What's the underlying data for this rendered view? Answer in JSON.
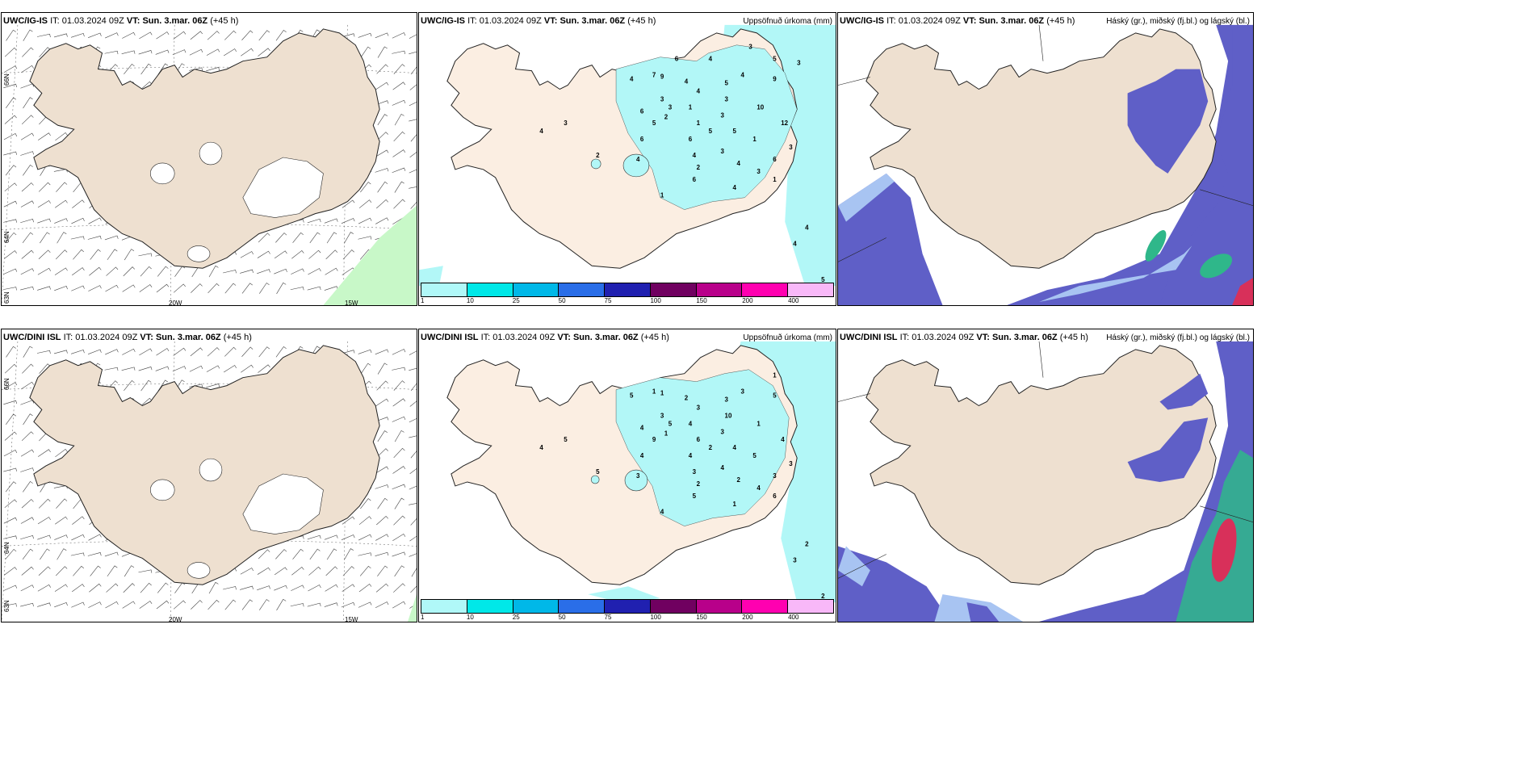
{
  "rows": [
    {
      "model": "UWC/IG-IS",
      "it_label": "IT:",
      "it_value": "01.03.2024 09Z",
      "vt_label": "VT:",
      "vt_value": "Sun. 3.mar. 06Z",
      "lead": "(+45 h)"
    },
    {
      "model": "UWC/DINI ISL",
      "it_label": "IT:",
      "it_value": "01.03.2024 09Z",
      "vt_label": "VT:",
      "vt_value": "Sun. 3.mar. 06Z",
      "lead": "(+45 h)"
    }
  ],
  "precip_title": "Uppsöfnuð úrkoma (mm)",
  "cloud_title": "Háský (gr.), miðský (fj.bl.) og lágský (bl.)",
  "axis_labels": {
    "lat_66": "66N",
    "lat_64": "64N",
    "lat_63": "63N",
    "lon_20": "20W",
    "lon_15": "15W"
  },
  "colorbar": {
    "ticks": [
      "1",
      "10",
      "25",
      "50",
      "75",
      "100",
      "150",
      "200",
      "400"
    ],
    "colors": [
      "#b0f8f8",
      "#00e8e8",
      "#00b8e8",
      "#2a6ee8",
      "#2020b0",
      "#700060",
      "#b8008a",
      "#ff00b0",
      "#f8b8f8"
    ]
  },
  "precip_values_top": [
    "7",
    "9",
    "4",
    "4",
    "3",
    "3",
    "6",
    "5",
    "2",
    "1",
    "1",
    "4",
    "5",
    "3",
    "3",
    "5",
    "4",
    "9",
    "6",
    "6",
    "4",
    "3",
    "4",
    "10",
    "12",
    "1",
    "3",
    "1",
    "2",
    "4",
    "6",
    "3",
    "1",
    "2",
    "3",
    "4",
    "4",
    "5",
    "4",
    "6",
    "5",
    "4",
    "5",
    "3",
    "4",
    "6",
    "3"
  ],
  "precip_values_bottom": [
    "1",
    "1",
    "2",
    "5",
    "3",
    "5",
    "4",
    "9",
    "1",
    "4",
    "6",
    "3",
    "3",
    "10",
    "3",
    "4",
    "3",
    "5",
    "4",
    "4",
    "3",
    "4",
    "3",
    "1",
    "4",
    "5",
    "4",
    "6",
    "2",
    "1",
    "3",
    "3",
    "4",
    "5",
    "5",
    "4",
    "3",
    "2",
    "2",
    "5",
    "2",
    "2",
    "1"
  ],
  "colors": {
    "land": "#eee0d0",
    "precip_light": "#b2f7f7",
    "cloud_high": "#5f5fc7",
    "cloud_light": "#a8c4f2",
    "cloud_green": "#2fb78a",
    "cloud_red": "#d8305a",
    "barb_green": "#c8f8c8"
  }
}
